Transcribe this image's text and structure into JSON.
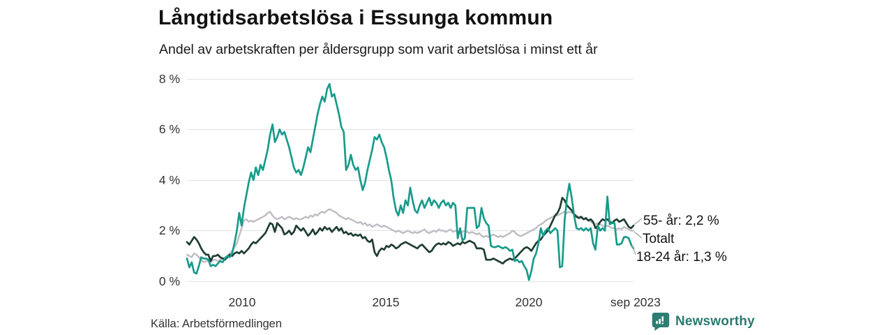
{
  "header": {
    "title": "Långtidsarbetslösa i Essunga kommun",
    "subtitle": "Andel av arbetskraften per åldersgrupp som varit arbetslösa i minst ett år"
  },
  "source_label": "Källa: Arbetsförmedlingen",
  "branding": {
    "name": "Newsworthy",
    "color": "#2b7a70"
  },
  "chart_data": {
    "type": "line",
    "title": "Långtidsarbetslösa i Essunga kommun",
    "subtitle": "Andel av arbetskraften per åldersgrupp som varit arbetslösa i minst ett år",
    "frequency": "monthly",
    "x_start": "2008-01",
    "x_end": "2023-09",
    "x_tick_labels": [
      "2010",
      "2015",
      "2020",
      "sep 2023"
    ],
    "y_tick_labels": [
      "0 %",
      "2 %",
      "4 %",
      "6 %",
      "8 %"
    ],
    "ylim": [
      0,
      8
    ],
    "unit": "%",
    "grid": "horizontal",
    "legend_position": "right-end-labels",
    "series": [
      {
        "id": "totalt",
        "name": "Totalt",
        "label": "Totalt",
        "color": "#bdbdc3",
        "width": 2.4,
        "values": [
          1.05,
          1.0,
          0.95,
          1.1,
          1.05,
          0.95,
          0.85,
          0.75,
          0.8,
          0.8,
          0.75,
          0.85,
          0.85,
          0.8,
          0.85,
          0.9,
          0.95,
          1.0,
          1.1,
          1.2,
          1.35,
          1.5,
          1.8,
          2.1,
          2.4,
          2.45,
          2.35,
          2.4,
          2.35,
          2.4,
          2.45,
          2.5,
          2.55,
          2.6,
          2.7,
          2.75,
          2.6,
          2.5,
          2.45,
          2.5,
          2.55,
          2.45,
          2.5,
          2.55,
          2.5,
          2.45,
          2.5,
          2.45,
          2.45,
          2.5,
          2.55,
          2.5,
          2.6,
          2.55,
          2.65,
          2.6,
          2.7,
          2.75,
          2.7,
          2.8,
          2.85,
          2.8,
          2.75,
          2.7,
          2.6,
          2.55,
          2.5,
          2.45,
          2.5,
          2.45,
          2.4,
          2.35,
          2.3,
          2.35,
          2.25,
          2.3,
          2.2,
          2.25,
          2.15,
          2.2,
          2.25,
          2.2,
          2.15,
          2.2,
          2.15,
          2.1,
          2.05,
          2.0,
          1.95,
          2.0,
          1.95,
          1.9,
          1.95,
          2.0,
          1.95,
          1.9,
          1.95,
          1.9,
          1.95,
          2.0,
          2.05,
          1.95,
          1.9,
          1.95,
          2.0,
          1.95,
          2.05,
          2.0,
          2.0,
          1.95,
          2.0,
          2.05,
          1.95,
          2.0,
          1.95,
          1.9,
          1.95,
          2.0,
          1.95,
          1.9,
          1.95,
          1.9,
          1.85,
          1.9,
          1.8,
          1.75,
          1.8,
          1.75,
          1.8,
          1.85,
          1.8,
          1.75,
          1.8,
          1.75,
          1.8,
          1.85,
          1.9,
          2.0,
          1.95,
          1.85,
          1.8,
          1.8,
          1.85,
          1.9,
          1.95,
          2.0,
          2.05,
          2.1,
          2.2,
          2.25,
          2.3,
          2.4,
          2.45,
          2.5,
          2.55,
          2.6,
          2.6,
          2.65,
          2.7,
          2.75,
          2.7,
          2.75,
          2.7,
          2.65,
          2.6,
          2.55,
          2.5,
          2.45,
          2.45,
          2.4,
          2.35,
          2.3,
          2.25,
          2.3,
          2.25,
          2.2,
          2.15,
          2.2,
          2.15,
          2.1,
          2.1,
          2.05,
          2.1,
          2.05,
          2.15,
          2.1,
          2.05,
          2.0,
          2.0
        ]
      },
      {
        "id": "55-ar",
        "name": "55- år",
        "label": "55- år: 2,2 %",
        "last_value_label": "2,2 %",
        "color": "#1f3d33",
        "width": 2.7,
        "values": [
          1.55,
          1.45,
          1.6,
          1.75,
          1.65,
          1.5,
          1.3,
          1.15,
          1.05,
          1.05,
          0.8,
          1.0,
          1.0,
          1.05,
          0.95,
          0.9,
          0.85,
          0.95,
          1.05,
          1.0,
          1.1,
          1.15,
          1.1,
          1.2,
          1.1,
          1.2,
          1.3,
          1.45,
          1.55,
          1.5,
          1.6,
          1.7,
          1.8,
          1.9,
          2.1,
          2.3,
          2.25,
          1.95,
          2.3,
          2.2,
          2.1,
          1.85,
          1.9,
          2.0,
          1.85,
          1.95,
          2.2,
          2.1,
          2.0,
          2.1,
          1.95,
          1.8,
          1.9,
          2.05,
          1.85,
          1.95,
          2.1,
          2.0,
          2.15,
          2.05,
          2.1,
          1.95,
          2.05,
          2.15,
          2.0,
          2.1,
          1.9,
          1.95,
          1.85,
          1.9,
          1.8,
          1.85,
          1.8,
          1.85,
          1.7,
          1.75,
          1.6,
          1.55,
          1.65,
          1.15,
          1.0,
          1.2,
          1.3,
          1.25,
          1.4,
          1.35,
          1.45,
          1.4,
          1.3,
          1.35,
          1.45,
          1.5,
          1.55,
          1.5,
          1.45,
          1.4,
          1.35,
          1.3,
          1.4,
          1.45,
          1.35,
          1.25,
          1.15,
          1.2,
          1.35,
          1.45,
          1.5,
          1.45,
          1.5,
          1.45,
          1.55,
          1.5,
          1.4,
          1.45,
          1.5,
          1.45,
          1.55,
          1.5,
          1.55,
          1.6,
          1.55,
          1.5,
          1.3,
          1.3,
          1.3,
          1.25,
          0.85,
          0.85,
          0.85,
          0.9,
          0.85,
          0.8,
          0.75,
          0.7,
          0.8,
          0.85,
          0.9,
          0.85,
          0.9,
          1.0,
          1.1,
          1.2,
          1.3,
          1.35,
          1.3,
          1.2,
          1.35,
          1.5,
          1.6,
          1.65,
          1.8,
          1.9,
          2.0,
          2.2,
          2.4,
          2.6,
          2.7,
          2.9,
          3.3,
          3.2,
          3.0,
          2.9,
          2.8,
          2.65,
          2.55,
          2.5,
          2.55,
          2.45,
          2.5,
          2.4,
          2.45,
          2.35,
          2.1,
          2.2,
          2.35,
          2.45,
          2.4,
          2.45,
          2.35,
          2.3,
          2.4,
          2.45,
          2.35,
          2.4,
          2.45,
          2.3,
          2.15,
          2.1,
          2.2
        ]
      },
      {
        "id": "18-24-ar",
        "name": "18-24 år",
        "label": "18-24 år: 1,3 %",
        "last_value_label": "1,3 %",
        "color": "#189b8a",
        "width": 2.7,
        "values": [
          0.9,
          0.55,
          0.75,
          0.35,
          0.3,
          0.6,
          0.95,
          0.9,
          0.9,
          0.85,
          0.6,
          0.65,
          0.6,
          0.7,
          0.8,
          0.75,
          0.9,
          1.0,
          0.95,
          1.1,
          1.5,
          2.0,
          2.7,
          2.2,
          2.9,
          3.4,
          3.9,
          4.3,
          4.0,
          4.5,
          4.2,
          4.6,
          4.4,
          4.8,
          5.2,
          5.8,
          6.2,
          5.5,
          5.7,
          6.0,
          5.8,
          5.9,
          5.6,
          5.3,
          4.9,
          4.5,
          4.3,
          4.4,
          4.2,
          4.5,
          4.9,
          5.3,
          5.1,
          5.6,
          6.1,
          6.6,
          7.0,
          7.3,
          7.1,
          7.6,
          7.8,
          7.3,
          7.4,
          7.0,
          6.6,
          6.1,
          5.9,
          4.4,
          4.6,
          5.0,
          4.6,
          4.4,
          4.5,
          4.0,
          3.6,
          3.9,
          4.4,
          4.8,
          5.2,
          5.7,
          5.6,
          5.8,
          5.5,
          5.3,
          4.9,
          4.4,
          4.0,
          3.3,
          2.8,
          2.6,
          3.0,
          2.7,
          3.2,
          3.0,
          3.7,
          3.2,
          2.8,
          2.7,
          3.0,
          3.2,
          2.9,
          3.1,
          3.3,
          3.0,
          3.2,
          3.1,
          2.9,
          3.1,
          3.2,
          3.0,
          3.1,
          2.9,
          3.1,
          3.0,
          1.7,
          2.1,
          1.6,
          1.7,
          2.9,
          2.9,
          2.9,
          2.9,
          2.1,
          2.2,
          2.9,
          2.5,
          2.3,
          2.2,
          1.4,
          1.35,
          1.35,
          1.4,
          1.35,
          1.3,
          1.35,
          1.3,
          1.2,
          1.25,
          0.8,
          0.85,
          0.75,
          0.8,
          0.6,
          0.45,
          0.05,
          0.4,
          0.9,
          1.1,
          1.5,
          2.1,
          1.8,
          2.0,
          2.1,
          1.9,
          2.0,
          2.1,
          2.0,
          0.55,
          0.6,
          2.4,
          3.3,
          3.85,
          3.3,
          2.6,
          2.1,
          2.05,
          2.1,
          2.0,
          2.1,
          2.0,
          2.1,
          1.5,
          1.25,
          2.2,
          2.0,
          2.1,
          2.0,
          3.35,
          2.25,
          2.3,
          2.3,
          1.45,
          1.45,
          1.5,
          1.75,
          1.75,
          1.7,
          1.45,
          1.3
        ]
      }
    ]
  }
}
